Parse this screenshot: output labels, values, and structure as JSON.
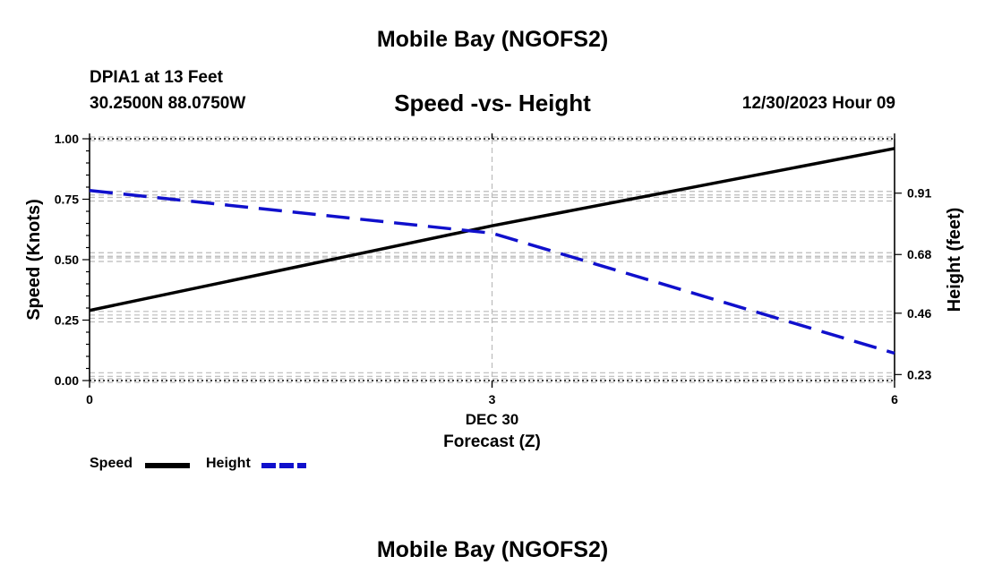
{
  "header": {
    "title": "Mobile Bay (NGOFS2)",
    "station": "DPIA1 at 13 Feet",
    "coords": "30.2500N  88.0750W",
    "subtitle": "Speed -vs- Height",
    "datetime": "12/30/2023 Hour 09"
  },
  "footer": {
    "title": "Mobile Bay (NGOFS2)"
  },
  "chart_data": {
    "type": "line",
    "x": [
      0,
      3,
      6
    ],
    "xlim": [
      0,
      6
    ],
    "x_ticks": [
      0,
      3,
      6
    ],
    "x_tick_labels": [
      "0",
      "3",
      "6"
    ],
    "x_date_label": "DEC 30",
    "xlabel": "Forecast (Z)",
    "ylabel_left": "Speed (Knots)",
    "ylim_left": [
      0,
      1
    ],
    "y_ticks_left": [
      0,
      0.25,
      0.5,
      0.75,
      1.0
    ],
    "y_tick_labels_left": [
      "0.00",
      "0.25",
      "0.50",
      "0.75",
      "1.00"
    ],
    "ylabel_right": "Height (feet)",
    "ylim_right": [
      0.2076,
      1.1138
    ],
    "y_ticks_right": [
      0.23,
      0.46,
      0.68,
      0.91
    ],
    "y_tick_labels_right": [
      "0.23",
      "0.46",
      "0.68",
      "0.91"
    ],
    "grid": true,
    "series": [
      {
        "name": "Speed",
        "axis": "left",
        "color": "#000000",
        "style": "solid",
        "values": [
          0.29,
          0.64,
          0.96
        ]
      },
      {
        "name": "Height",
        "axis": "right",
        "color": "#1010cc",
        "style": "dashed",
        "values": [
          0.92,
          0.76,
          0.31
        ]
      }
    ],
    "legend": [
      {
        "label": "Speed",
        "color": "#000000",
        "style": "solid"
      },
      {
        "label": "Height",
        "color": "#1010cc",
        "style": "dashed"
      }
    ],
    "legend_position": "bottom-left"
  }
}
